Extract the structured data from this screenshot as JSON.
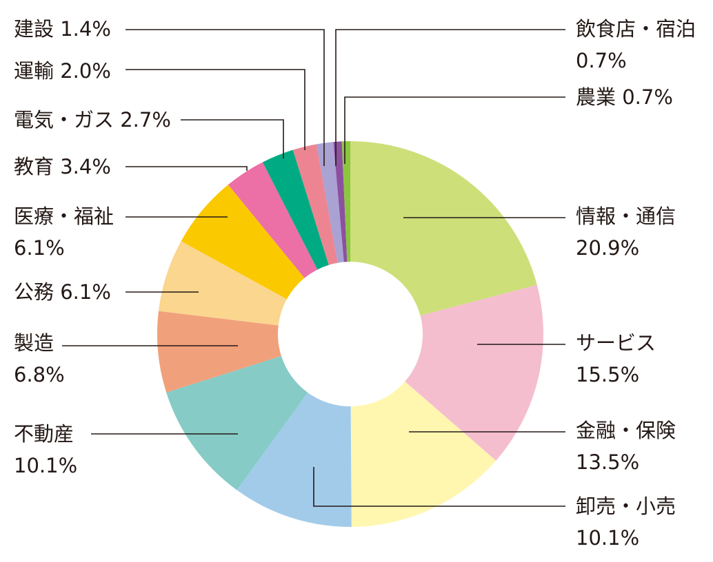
{
  "chart_data": {
    "type": "pie",
    "title": "",
    "unit": "%",
    "slices": [
      {
        "name": "情報・通信",
        "value": 20.9,
        "label_lines": [
          "情報・通信",
          "20.9%"
        ],
        "color": "#CDDF79"
      },
      {
        "name": "サービス",
        "value": 15.5,
        "label_lines": [
          "サービス",
          "15.5%"
        ],
        "color": "#F5BECF"
      },
      {
        "name": "金融・保険",
        "value": 13.5,
        "label_lines": [
          "金融・保険",
          "13.5%"
        ],
        "color": "#FFF7B0"
      },
      {
        "name": "卸売・小売",
        "value": 10.1,
        "label_lines": [
          "卸売・小売",
          "10.1%"
        ],
        "color": "#A2CBEA"
      },
      {
        "name": "不動産",
        "value": 10.1,
        "label_lines": [
          "不動産",
          "10.1%"
        ],
        "color": "#86CBC6"
      },
      {
        "name": "製造",
        "value": 6.8,
        "label_lines": [
          "製造",
          "6.8%"
        ],
        "color": "#F1A07C"
      },
      {
        "name": "公務",
        "value": 6.1,
        "label_lines": [
          "公務 6.1%"
        ],
        "color": "#FAD68E"
      },
      {
        "name": "医療・福祉",
        "value": 6.1,
        "label_lines": [
          "医療・福祉",
          "6.1%"
        ],
        "color": "#FBC900"
      },
      {
        "name": "教育",
        "value": 3.4,
        "label_lines": [
          "教育 3.4%"
        ],
        "color": "#EC6FA6"
      },
      {
        "name": "電気・ガス",
        "value": 2.7,
        "label_lines": [
          "電気・ガス 2.7%"
        ],
        "color": "#00AB84"
      },
      {
        "name": "運輸",
        "value": 2.0,
        "label_lines": [
          "運輸 2.0%"
        ],
        "color": "#EC8591"
      },
      {
        "name": "建設",
        "value": 1.4,
        "label_lines": [
          "建設 1.4%"
        ],
        "color": "#A9A2D2"
      },
      {
        "name": "飲食店・宿泊",
        "value": 0.7,
        "label_lines": [
          "飲食店・宿泊",
          "0.7%"
        ],
        "color": "#8C50A0"
      },
      {
        "name": "農業",
        "value": 0.7,
        "label_lines": [
          "農業 0.7%"
        ],
        "color": "#8CC63F"
      }
    ]
  }
}
